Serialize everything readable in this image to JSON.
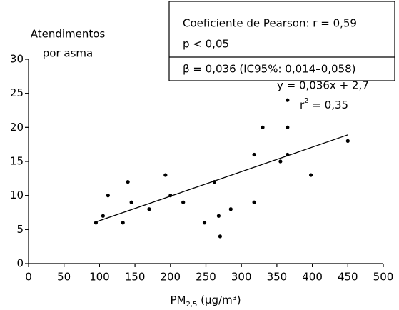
{
  "chart_data": {
    "type": "scatter",
    "y_label": [
      "Atendimentos",
      "por asma"
    ],
    "x_label": {
      "main": "PM",
      "sub": "2,5",
      "rest": " (µg/m³)"
    },
    "annotation": [
      "Coeficiente de Pearson: r = 0,59",
      "p < 0,05",
      "β = 0,036 (IC95%: 0,014–0,058)"
    ],
    "equation": "y = 0,036x + 2,7",
    "r2": {
      "main": "r",
      "sup": "2",
      "rest": " = 0,35"
    },
    "x": [
      95,
      105,
      112,
      133,
      140,
      145,
      170,
      193,
      200,
      218,
      248,
      262,
      268,
      270,
      285,
      318,
      318,
      330,
      355,
      365,
      365,
      365,
      398,
      450
    ],
    "values": [
      6,
      7,
      10,
      6,
      12,
      9,
      8,
      13,
      10,
      9,
      6,
      12,
      7,
      4,
      8,
      16,
      9,
      20,
      15,
      24,
      20,
      16,
      13,
      18
    ],
    "color": "#000000",
    "trendline": {
      "x": [
        95,
        450
      ],
      "values": [
        6.12,
        18.9
      ]
    },
    "xlim": [
      0,
      500
    ],
    "xticks": [
      0,
      50,
      100,
      150,
      200,
      250,
      300,
      350,
      400,
      450,
      500
    ],
    "ylim": [
      0,
      30
    ],
    "yticks": [
      0,
      5,
      10,
      15,
      20,
      25,
      30
    ]
  }
}
